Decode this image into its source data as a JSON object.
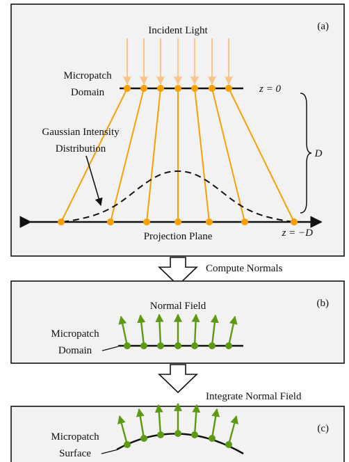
{
  "panel_a": {
    "tag": "(a)",
    "incident_light": "Incident Light",
    "micropatch_domain_line1": "Micropatch",
    "micropatch_domain_line2": "Domain",
    "z_top": "z = 0",
    "gaussian_line1": "Gaussian Intensity",
    "gaussian_line2": "Distribution",
    "distance": "D",
    "projection_plane": "Projection Plane",
    "z_bottom": "z = −D"
  },
  "step1": "Compute Normals",
  "panel_b": {
    "tag": "(b)",
    "normal_field": "Normal Field",
    "domain_line1": "Micropatch",
    "domain_line2": "Domain"
  },
  "step2": "Integrate Normal Field",
  "panel_c": {
    "tag": "(c)",
    "surface_line1": "Micropatch",
    "surface_line2": "Surface"
  },
  "colors": {
    "panel_bg": "#f2f2f2",
    "orange": "#f7a000",
    "light_orange": "#f9c58a",
    "green": "#5b9a12",
    "arrow_icon": "block-down-arrow-icon"
  }
}
